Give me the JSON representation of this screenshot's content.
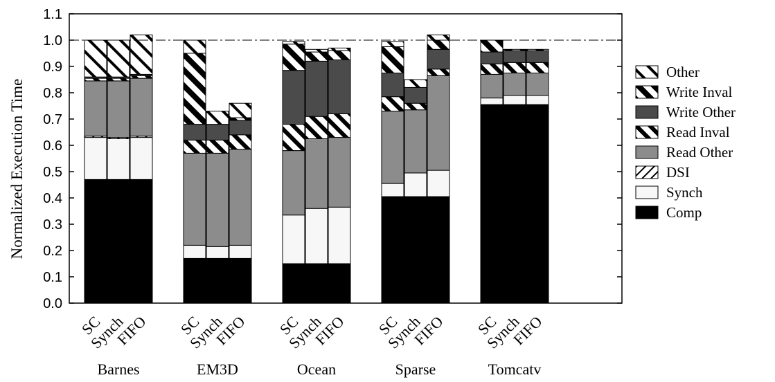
{
  "chart_data": {
    "type": "bar",
    "stacked": true,
    "ylabel": "Normalized Execution Time",
    "ylim": [
      0.0,
      1.1
    ],
    "yticks": [
      "0.0",
      "0.1",
      "0.2",
      "0.3",
      "0.4",
      "0.5",
      "0.6",
      "0.7",
      "0.8",
      "0.9",
      "1.0",
      "1.1"
    ],
    "reference_line": 1.0,
    "groups": [
      "Barnes",
      "EM3D",
      "Ocean",
      "Sparse",
      "Tomcatv"
    ],
    "bar_labels": [
      "SC",
      "Synch",
      "FIFO"
    ],
    "legend_position": "right",
    "series": [
      {
        "name": "Comp",
        "fill": "black"
      },
      {
        "name": "Synch",
        "fill": "light"
      },
      {
        "name": "DSI",
        "fill": "hatch-back"
      },
      {
        "name": "Read Other",
        "fill": "gray"
      },
      {
        "name": "Read Inval",
        "fill": "stripe-thick"
      },
      {
        "name": "Write Other",
        "fill": "dark"
      },
      {
        "name": "Write Inval",
        "fill": "stripe-bold"
      },
      {
        "name": "Other",
        "fill": "stripe-thin"
      }
    ],
    "bars": [
      {
        "group": "Barnes",
        "label": "SC",
        "values": [
          0.47,
          0.16,
          0.005,
          0.21,
          0.01,
          0.005,
          0.0,
          0.14
        ]
      },
      {
        "group": "Barnes",
        "label": "Synch",
        "values": [
          0.47,
          0.155,
          0.005,
          0.215,
          0.01,
          0.005,
          0.0,
          0.14
        ]
      },
      {
        "group": "Barnes",
        "label": "FIFO",
        "values": [
          0.47,
          0.16,
          0.005,
          0.22,
          0.01,
          0.005,
          0.0,
          0.15
        ]
      },
      {
        "group": "EM3D",
        "label": "SC",
        "values": [
          0.17,
          0.05,
          0.0,
          0.35,
          0.05,
          0.06,
          0.27,
          0.05
        ]
      },
      {
        "group": "EM3D",
        "label": "Synch",
        "values": [
          0.17,
          0.045,
          0.0,
          0.355,
          0.05,
          0.06,
          0.0,
          0.05
        ]
      },
      {
        "group": "EM3D",
        "label": "FIFO",
        "values": [
          0.17,
          0.05,
          0.0,
          0.365,
          0.055,
          0.055,
          0.01,
          0.055
        ]
      },
      {
        "group": "Ocean",
        "label": "SC",
        "values": [
          0.15,
          0.185,
          0.0,
          0.245,
          0.1,
          0.205,
          0.1,
          0.01
        ]
      },
      {
        "group": "Ocean",
        "label": "Synch",
        "values": [
          0.15,
          0.21,
          0.0,
          0.265,
          0.085,
          0.21,
          0.035,
          0.01
        ]
      },
      {
        "group": "Ocean",
        "label": "FIFO",
        "values": [
          0.15,
          0.215,
          0.0,
          0.265,
          0.09,
          0.205,
          0.035,
          0.01
        ]
      },
      {
        "group": "Sparse",
        "label": "SC",
        "values": [
          0.405,
          0.05,
          0.0,
          0.275,
          0.055,
          0.09,
          0.1,
          0.02
        ]
      },
      {
        "group": "Sparse",
        "label": "Synch",
        "values": [
          0.405,
          0.09,
          0.0,
          0.24,
          0.025,
          0.06,
          0.0,
          0.03
        ]
      },
      {
        "group": "Sparse",
        "label": "FIFO",
        "values": [
          0.405,
          0.1,
          0.0,
          0.36,
          0.025,
          0.075,
          0.035,
          0.02
        ]
      },
      {
        "group": "Tomcatv",
        "label": "SC",
        "values": [
          0.755,
          0.025,
          0.0,
          0.09,
          0.04,
          0.045,
          0.045,
          0.0
        ]
      },
      {
        "group": "Tomcatv",
        "label": "Synch",
        "values": [
          0.755,
          0.035,
          0.0,
          0.085,
          0.04,
          0.045,
          0.005,
          0.0
        ]
      },
      {
        "group": "Tomcatv",
        "label": "FIFO",
        "values": [
          0.755,
          0.035,
          0.0,
          0.085,
          0.04,
          0.045,
          0.005,
          0.0
        ]
      }
    ]
  }
}
